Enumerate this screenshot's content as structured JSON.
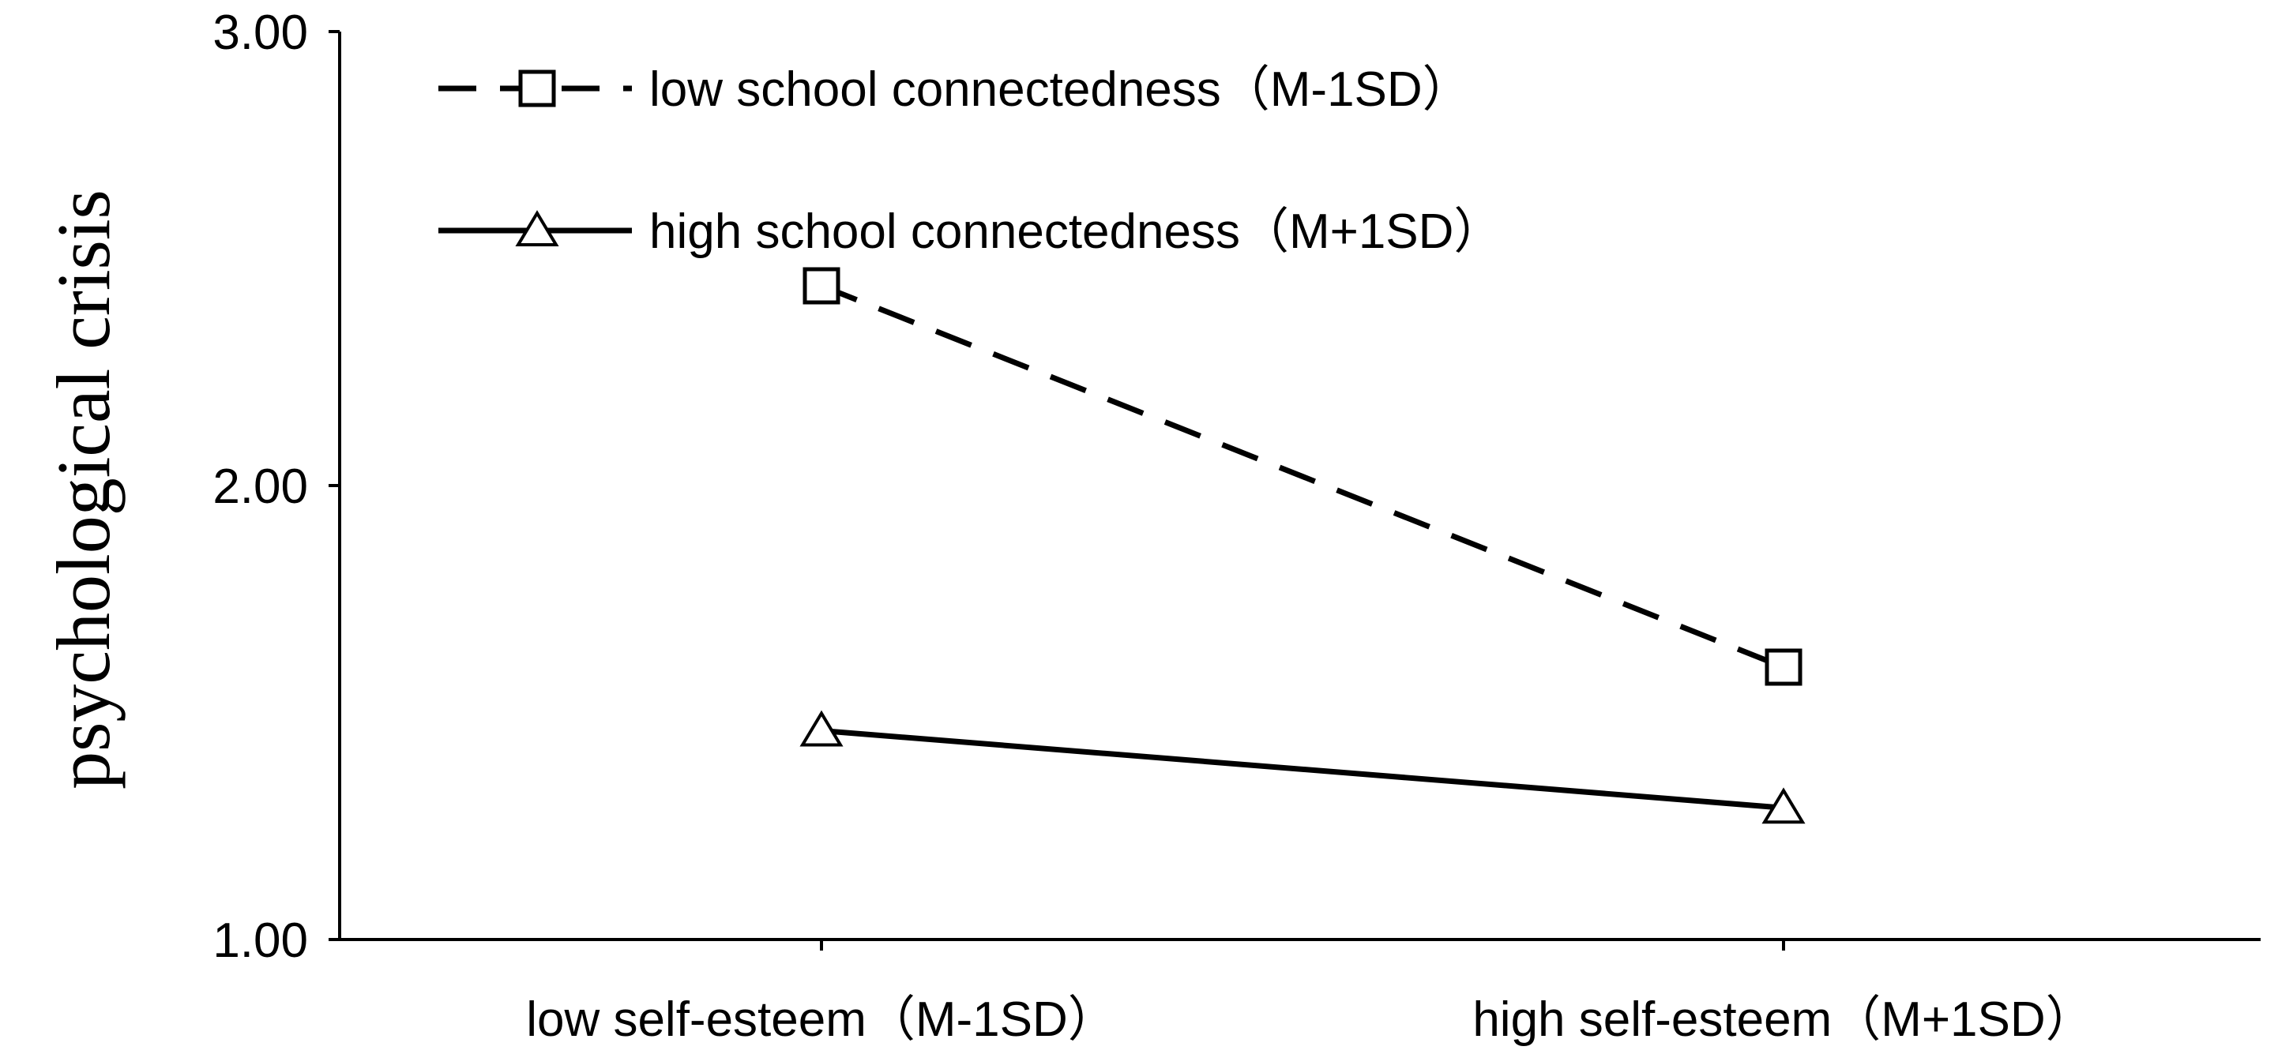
{
  "chart_data": {
    "type": "line",
    "title": "",
    "xlabel": "",
    "ylabel": "psychological crisis",
    "categories": [
      "low self-esteem（M-1SD）",
      "high self-esteem（M+1SD）"
    ],
    "ylim": [
      1.0,
      3.0
    ],
    "yticks": [
      "1.00",
      "2.00",
      "3.00"
    ],
    "grid": false,
    "legend_position": "top-left",
    "series": [
      {
        "name": "low school connectedness（M-1SD）",
        "values": [
          2.44,
          1.6
        ],
        "line_style": "dashed",
        "marker": "square",
        "color": "#000000"
      },
      {
        "name": "high school connectedness（M+1SD）",
        "values": [
          1.46,
          1.29
        ],
        "line_style": "solid",
        "marker": "triangle",
        "color": "#000000"
      }
    ]
  }
}
